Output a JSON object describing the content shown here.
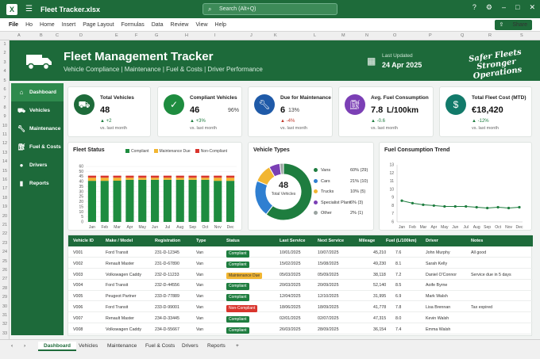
{
  "window": {
    "file_name": "Fleet Tracker.xlsx",
    "search_placeholder": "Search (Alt+Q)"
  },
  "menu": {
    "items": [
      "File",
      "Ho",
      "Home",
      "Insert",
      "Page Layout",
      "Formulas",
      "Data",
      "Review",
      "View",
      "Help"
    ],
    "share": "Share"
  },
  "columns": [
    "A",
    "B",
    "C",
    "D",
    "E",
    "F",
    "G",
    "H",
    "I",
    "J",
    "K",
    "L",
    "M",
    "N",
    "O",
    "P",
    "Q",
    "R",
    "S"
  ],
  "rows": [
    "1",
    "2",
    "3",
    "4",
    "5",
    "6",
    "7",
    "8",
    "9",
    "10",
    "11",
    "12",
    "13",
    "14",
    "15",
    "16",
    "17",
    "18",
    "19",
    "20",
    "21",
    "22",
    "23",
    "24",
    "25",
    "26",
    "27",
    "28",
    "29",
    "30",
    "31",
    "32",
    "33"
  ],
  "banner": {
    "title": "Fleet Management Tracker",
    "subtitle": "Vehicle Compliance  |  Maintenance  |  Fuel & Costs  |  Driver Performance",
    "updated_label": "Last Updated",
    "updated_date": "24 Apr 2025",
    "slogan_line1": "Safer Fleets",
    "slogan_line2": "Stronger Operations"
  },
  "nav": [
    {
      "label": "Dashboard",
      "icon": "home-icon"
    },
    {
      "label": "Vehicles",
      "icon": "car-icon"
    },
    {
      "label": "Maintenance",
      "icon": "wrench-icon"
    },
    {
      "label": "Fuel & Costs",
      "icon": "fuel-icon"
    },
    {
      "label": "Drivers",
      "icon": "person-icon"
    },
    {
      "label": "Reports",
      "icon": "bar-chart-icon"
    }
  ],
  "kpis": [
    {
      "title": "Total Vehicles",
      "value": "48",
      "sub": "",
      "delta": "▲ +2",
      "period": "vs. last month",
      "color": "#1e6b3a",
      "icon": "truck-icon"
    },
    {
      "title": "Compliant Vehicles",
      "value": "46",
      "sub": "96%",
      "delta": "▲ +3%",
      "period": "vs. last month",
      "color": "#1e8c3f",
      "icon": "check-icon"
    },
    {
      "title": "Due for Maintenance",
      "value": "6",
      "sub": "13%",
      "delta": "▲ -4%",
      "period": "vs. last month",
      "color": "#1f5aa8",
      "icon": "wrench-icon"
    },
    {
      "title": "Avg. Fuel Consumption",
      "value": "7.8",
      "sub": "L/100km",
      "delta": "▲ -0.6",
      "period": "vs. last month",
      "color": "#7b3fb5",
      "icon": "fuel-icon"
    },
    {
      "title": "Total Fleet Cost (MTD)",
      "value": "€18,420",
      "sub": "",
      "delta": "▲ -12%",
      "period": "vs. last month",
      "color": "#127a6a",
      "icon": "coins-icon"
    }
  ],
  "fleet_status": {
    "title": "Fleet Status",
    "legend": [
      {
        "label": "Compliant",
        "color": "#1e8c3f"
      },
      {
        "label": "Maintenance Due",
        "color": "#f2b632"
      },
      {
        "label": "Non-Compliant",
        "color": "#d9352d"
      }
    ]
  },
  "vehicle_types": {
    "title": "Vehicle Types",
    "center_value": "48",
    "center_label": "Total Vehicles",
    "items": [
      {
        "label": "Vans",
        "pct": "60% (29)",
        "color": "#1e7d3f"
      },
      {
        "label": "Cars",
        "pct": "21% (10)",
        "color": "#2f7fd1"
      },
      {
        "label": "Trucks",
        "pct": "10% (5)",
        "color": "#f2b632"
      },
      {
        "label": "Specialist Plant",
        "pct": "6% (3)",
        "color": "#7b3fb5"
      },
      {
        "label": "Other",
        "pct": "2% (1)",
        "color": "#9aa3a0"
      }
    ]
  },
  "fuel_trend": {
    "title": "Fuel Consumption Trend"
  },
  "chart_data": [
    {
      "type": "bar",
      "title": "Fleet Status",
      "categories": [
        "Jan",
        "Feb",
        "Mar",
        "Apr",
        "May",
        "Jun",
        "Jul",
        "Aug",
        "Sep",
        "Oct",
        "Nov",
        "Dec"
      ],
      "series": [
        {
          "name": "Compliant",
          "values": [
            40,
            40,
            41,
            41,
            41,
            41,
            41,
            41,
            41,
            41,
            40,
            40
          ]
        },
        {
          "name": "Maintenance Due",
          "values": [
            3,
            3,
            3,
            2,
            2,
            2,
            2,
            2,
            2,
            2,
            3,
            3
          ]
        },
        {
          "name": "Non-Compliant",
          "values": [
            2,
            2,
            2,
            2,
            2,
            2,
            2,
            2,
            2,
            2,
            2,
            2
          ]
        }
      ],
      "yticks": [
        0,
        5,
        10,
        15,
        20,
        25,
        30,
        35,
        40,
        45,
        50,
        60
      ],
      "ylim": [
        0,
        60
      ]
    },
    {
      "type": "pie",
      "title": "Vehicle Types",
      "categories": [
        "Vans",
        "Cars",
        "Trucks",
        "Specialist Plant",
        "Other"
      ],
      "values": [
        29,
        10,
        5,
        3,
        1
      ]
    },
    {
      "type": "line",
      "title": "Fuel Consumption Trend",
      "categories": [
        "Jan",
        "Feb",
        "Mar",
        "Apr",
        "May",
        "Jun",
        "Jul",
        "Aug",
        "Sep",
        "Oct",
        "Nov",
        "Dec"
      ],
      "values": [
        8.6,
        8.3,
        8.1,
        8.0,
        7.9,
        7.9,
        7.9,
        7.8,
        7.7,
        7.8,
        7.7,
        7.8
      ],
      "yticks": [
        6,
        7,
        8,
        9,
        10,
        11,
        12,
        13
      ],
      "ylim": [
        6,
        13
      ]
    }
  ],
  "table": {
    "headers": [
      "Vehicle ID",
      "Make / Model",
      "Registration",
      "Type",
      "Status",
      "Last Service",
      "Next Service",
      "Mileage",
      "Fuel (L/100km)",
      "Driver",
      "Notes"
    ],
    "rows": [
      [
        "V001",
        "Ford Transit",
        "231-D-12345",
        "Van",
        "Compliant",
        "10/01/2025",
        "10/07/2025",
        "45,210",
        "7.6",
        "John Murphy",
        "All good"
      ],
      [
        "V002",
        "Renault Master",
        "231-D-67890",
        "Van",
        "Compliant",
        "15/02/2025",
        "15/08/2025",
        "49,230",
        "8.1",
        "Sarah Kelly",
        ""
      ],
      [
        "V003",
        "Volkswagen Caddy",
        "232-D-11233",
        "Van",
        "Maintenance Due",
        "05/03/2025",
        "05/09/2025",
        "38,118",
        "7.2",
        "Daniel O'Connor",
        "Service due in 5 days"
      ],
      [
        "V004",
        "Ford Transit",
        "232-D-44556",
        "Van",
        "Compliant",
        "20/03/2025",
        "20/09/2025",
        "52,140",
        "8.5",
        "Aoife Byrne",
        ""
      ],
      [
        "V005",
        "Peugeot Partner",
        "233-D-77889",
        "Van",
        "Compliant",
        "12/04/2025",
        "12/10/2025",
        "31,995",
        "6.9",
        "Mark Walsh",
        ""
      ],
      [
        "V006",
        "Ford Transit",
        "233-D-99001",
        "Van",
        "Non-Compliant",
        "18/06/2025",
        "18/09/2025",
        "41,778",
        "7.8",
        "Lisa Brennan",
        "Tax expired"
      ],
      [
        "V007",
        "Renault Master",
        "234-D-33445",
        "Van",
        "Compliant",
        "02/01/2025",
        "02/07/2025",
        "47,315",
        "8.0",
        "Kevin Walsh",
        ""
      ],
      [
        "V008",
        "Volkswagen Caddy",
        "234-D-55667",
        "Van",
        "Compliant",
        "26/03/2025",
        "28/09/2025",
        "36,154",
        "7.4",
        "Emma Walsh",
        ""
      ]
    ]
  },
  "sheet_tabs": [
    "Dashboard",
    "Vehicles",
    "Maintenance",
    "Fuel & Costs",
    "Drivers",
    "Reports"
  ],
  "colors": {
    "brand": "#1d6a3a",
    "compliant": "#1e8c3f",
    "due": "#f2b632",
    "noncompliant": "#d9352d"
  }
}
